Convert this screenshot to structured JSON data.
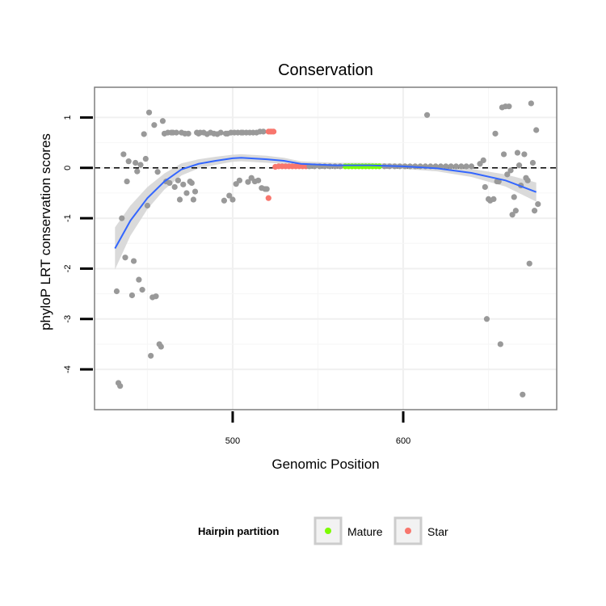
{
  "chart_data": {
    "type": "scatter",
    "title": "Conservation",
    "xlabel": "Genomic Position",
    "ylabel": "phyloP LRT conservation scores",
    "xlim": [
      419,
      690
    ],
    "ylim": [
      -4.8,
      1.6
    ],
    "x_ticks": [
      500,
      600
    ],
    "y_ticks": [
      1,
      0,
      -1,
      -2,
      -3,
      -4
    ],
    "grid": true,
    "reference_line": {
      "y": 0,
      "style": "dashed"
    },
    "legend": {
      "title": "Hairpin partition",
      "position": "bottom",
      "entries": [
        {
          "label": "Mature",
          "color": "#7cfc00"
        },
        {
          "label": "Star",
          "color": "#f8766d"
        }
      ]
    },
    "colors": {
      "other": "#999999",
      "Mature": "#7cfc00",
      "Star": "#f8766d",
      "smooth": "#3366ff",
      "band": "#d3d3d3"
    },
    "series": [
      {
        "group": "other",
        "points": [
          [
            432,
            -2.45
          ],
          [
            433,
            -4.27
          ],
          [
            434,
            -4.33
          ],
          [
            435,
            -1.0
          ],
          [
            436,
            0.27
          ],
          [
            437,
            -1.78
          ],
          [
            438,
            -0.27
          ],
          [
            439,
            0.13
          ],
          [
            441,
            -2.53
          ],
          [
            442,
            -1.85
          ],
          [
            443,
            0.1
          ],
          [
            444,
            -0.07
          ],
          [
            445,
            -2.22
          ],
          [
            446,
            0.06
          ],
          [
            447,
            -2.42
          ],
          [
            448,
            0.67
          ],
          [
            449,
            0.18
          ],
          [
            450,
            -0.75
          ],
          [
            451,
            1.1
          ],
          [
            452,
            -3.73
          ],
          [
            453,
            -2.57
          ],
          [
            454,
            0.85
          ],
          [
            455,
            -2.55
          ],
          [
            456,
            -0.08
          ],
          [
            457,
            -3.5
          ],
          [
            458,
            -3.55
          ],
          [
            459,
            0.93
          ],
          [
            460,
            0.68
          ],
          [
            461,
            -0.27
          ],
          [
            462,
            0.7
          ],
          [
            463,
            -0.3
          ],
          [
            464,
            0.7
          ],
          [
            465,
            0.7
          ],
          [
            466,
            -0.38
          ],
          [
            467,
            0.7
          ],
          [
            468,
            -0.25
          ],
          [
            469,
            -0.63
          ],
          [
            470,
            0.7
          ],
          [
            471,
            -0.33
          ],
          [
            472,
            0.68
          ],
          [
            473,
            -0.5
          ],
          [
            474,
            0.68
          ],
          [
            475,
            -0.27
          ],
          [
            476,
            -0.3
          ],
          [
            477,
            -0.63
          ],
          [
            478,
            -0.47
          ],
          [
            479,
            0.7
          ],
          [
            480,
            0.68
          ],
          [
            481,
            0.7
          ],
          [
            483,
            0.7
          ],
          [
            485,
            0.67
          ],
          [
            487,
            0.7
          ],
          [
            489,
            0.68
          ],
          [
            491,
            0.67
          ],
          [
            493,
            0.7
          ],
          [
            495,
            -0.65
          ],
          [
            496,
            0.68
          ],
          [
            497,
            0.68
          ],
          [
            498,
            -0.55
          ],
          [
            499,
            0.7
          ],
          [
            500,
            -0.63
          ],
          [
            501,
            0.7
          ],
          [
            502,
            -0.32
          ],
          [
            503,
            0.7
          ],
          [
            504,
            -0.25
          ],
          [
            505,
            0.7
          ],
          [
            506,
            0.7
          ],
          [
            508,
            0.7
          ],
          [
            509,
            -0.28
          ],
          [
            510,
            0.7
          ],
          [
            511,
            -0.2
          ],
          [
            512,
            0.7
          ],
          [
            513,
            -0.27
          ],
          [
            514,
            0.7
          ],
          [
            515,
            -0.25
          ],
          [
            516,
            0.72
          ],
          [
            517,
            -0.4
          ],
          [
            518,
            0.72
          ],
          [
            519,
            -0.42
          ],
          [
            520,
            -0.42
          ],
          [
            614,
            1.05
          ],
          [
            645,
            0.08
          ],
          [
            647,
            0.15
          ],
          [
            648,
            -0.38
          ],
          [
            649,
            -3.0
          ],
          [
            650,
            -0.62
          ],
          [
            651,
            -0.65
          ],
          [
            653,
            -0.62
          ],
          [
            654,
            0.68
          ],
          [
            655,
            -0.27
          ],
          [
            656,
            -0.27
          ],
          [
            657,
            -3.5
          ],
          [
            658,
            1.2
          ],
          [
            659,
            0.27
          ],
          [
            660,
            1.22
          ],
          [
            661,
            -0.13
          ],
          [
            662,
            1.22
          ],
          [
            663,
            -0.05
          ],
          [
            664,
            -0.93
          ],
          [
            665,
            -0.58
          ],
          [
            666,
            -0.85
          ],
          [
            667,
            0.3
          ],
          [
            668,
            0.05
          ],
          [
            669,
            -0.35
          ],
          [
            670,
            -4.5
          ],
          [
            671,
            0.27
          ],
          [
            672,
            -0.2
          ],
          [
            673,
            -0.25
          ],
          [
            674,
            -1.9
          ],
          [
            675,
            1.28
          ],
          [
            676,
            0.1
          ],
          [
            677,
            -0.85
          ],
          [
            678,
            0.75
          ],
          [
            679,
            -0.72
          ]
        ]
      },
      {
        "group": "Star",
        "points": [
          [
            521,
            0.72
          ],
          [
            522,
            0.72
          ],
          [
            523,
            0.72
          ],
          [
            524,
            0.72
          ],
          [
            521,
            -0.6
          ],
          [
            525,
            0.02
          ],
          [
            527,
            0.03
          ],
          [
            529,
            0.03
          ],
          [
            531,
            0.03
          ],
          [
            533,
            0.03
          ],
          [
            535,
            0.03
          ],
          [
            537,
            0.03
          ],
          [
            539,
            0.03
          ],
          [
            541,
            0.03
          ],
          [
            543,
            0.03
          ]
        ]
      },
      {
        "group": "Mature",
        "points": [
          [
            566,
            0.03
          ],
          [
            568,
            0.03
          ],
          [
            570,
            0.03
          ],
          [
            572,
            0.03
          ],
          [
            574,
            0.03
          ],
          [
            576,
            0.03
          ],
          [
            578,
            0.03
          ],
          [
            580,
            0.03
          ],
          [
            582,
            0.03
          ],
          [
            584,
            0.03
          ],
          [
            586,
            0.03
          ]
        ]
      },
      {
        "group": "other",
        "points": [
          [
            545,
            0.03
          ],
          [
            548,
            0.03
          ],
          [
            551,
            0.03
          ],
          [
            554,
            0.03
          ],
          [
            557,
            0.03
          ],
          [
            560,
            0.03
          ],
          [
            563,
            0.03
          ],
          [
            589,
            0.03
          ],
          [
            592,
            0.03
          ],
          [
            595,
            0.03
          ],
          [
            598,
            0.03
          ],
          [
            601,
            0.03
          ],
          [
            604,
            0.03
          ],
          [
            607,
            0.03
          ],
          [
            610,
            0.03
          ],
          [
            613,
            0.03
          ],
          [
            616,
            0.03
          ],
          [
            619,
            0.03
          ],
          [
            622,
            0.03
          ],
          [
            625,
            0.03
          ],
          [
            628,
            0.03
          ],
          [
            631,
            0.03
          ],
          [
            634,
            0.03
          ],
          [
            637,
            0.03
          ],
          [
            640,
            0.03
          ]
        ]
      }
    ],
    "smooth": {
      "x": [
        431,
        440,
        450,
        460,
        470,
        480,
        490,
        500,
        505,
        510,
        520,
        530,
        540,
        560,
        580,
        600,
        620,
        640,
        660,
        678
      ],
      "y": [
        -1.6,
        -1.05,
        -0.6,
        -0.27,
        -0.03,
        0.08,
        0.14,
        0.19,
        0.2,
        0.19,
        0.17,
        0.14,
        0.08,
        0.05,
        0.05,
        0.03,
        -0.01,
        -0.1,
        -0.25,
        -0.48
      ],
      "se": [
        0.42,
        0.3,
        0.22,
        0.16,
        0.12,
        0.09,
        0.08,
        0.07,
        0.07,
        0.07,
        0.07,
        0.06,
        0.05,
        0.05,
        0.05,
        0.05,
        0.06,
        0.08,
        0.12,
        0.19
      ]
    }
  }
}
